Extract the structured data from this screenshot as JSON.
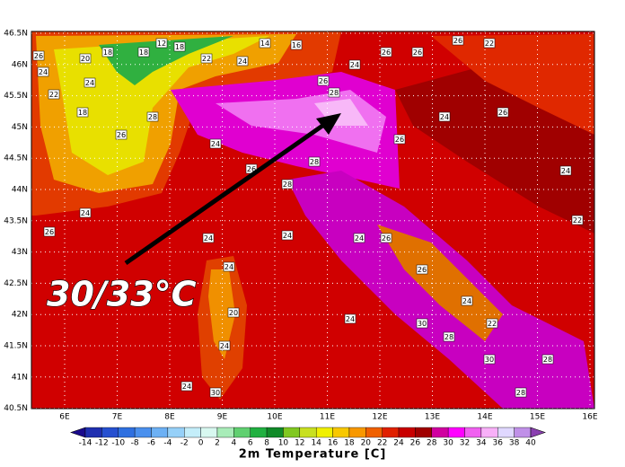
{
  "map": {
    "lat_labels": [
      "46.5N",
      "46N",
      "45.5N",
      "45N",
      "44.5N",
      "44N",
      "43.5N",
      "43N",
      "42.5N",
      "42N",
      "41.5N",
      "41N",
      "40.5N"
    ],
    "lon_labels": [
      "6E",
      "7E",
      "8E",
      "9E",
      "10E",
      "11E",
      "12E",
      "13E",
      "14E",
      "15E",
      "16E"
    ],
    "annotation": "30/33°C",
    "stations": [
      "26",
      "24",
      "20",
      "24",
      "18",
      "18",
      "12",
      "18",
      "22",
      "24",
      "14",
      "16",
      "26",
      "24",
      "26",
      "26",
      "26",
      "22",
      "22",
      "18",
      "26",
      "28",
      "24",
      "26",
      "28",
      "28",
      "28",
      "26",
      "24",
      "26",
      "24",
      "26",
      "24",
      "24",
      "24",
      "24",
      "26",
      "26",
      "24",
      "24",
      "20",
      "24",
      "24",
      "30",
      "28",
      "30",
      "30",
      "24",
      "28",
      "28",
      "22",
      "22"
    ]
  },
  "colorbar": {
    "title": "2m Temperature [C]",
    "labels": [
      "-14",
      "-12",
      "-10",
      "-8",
      "-6",
      "-4",
      "-2",
      "0",
      "2",
      "4",
      "6",
      "8",
      "10",
      "12",
      "14",
      "16",
      "18",
      "20",
      "22",
      "24",
      "26",
      "28",
      "30",
      "32",
      "34",
      "36",
      "38",
      "40"
    ],
    "colors": [
      "#1a0a8c",
      "#1f2fb0",
      "#2650d0",
      "#2f70e0",
      "#4a90ee",
      "#6cb0f4",
      "#96d0f8",
      "#c4eefa",
      "#d8f8f0",
      "#a8ecb8",
      "#60d070",
      "#20b040",
      "#108a28",
      "#80c820",
      "#c8e020",
      "#f0f000",
      "#f8c800",
      "#f89800",
      "#f06000",
      "#e02000",
      "#c80000",
      "#a00000",
      "#d000a0",
      "#ff00ff",
      "#f060f0",
      "#f8b0f8",
      "#e0d8ff",
      "#c090e8",
      "#8a40b0"
    ]
  }
}
